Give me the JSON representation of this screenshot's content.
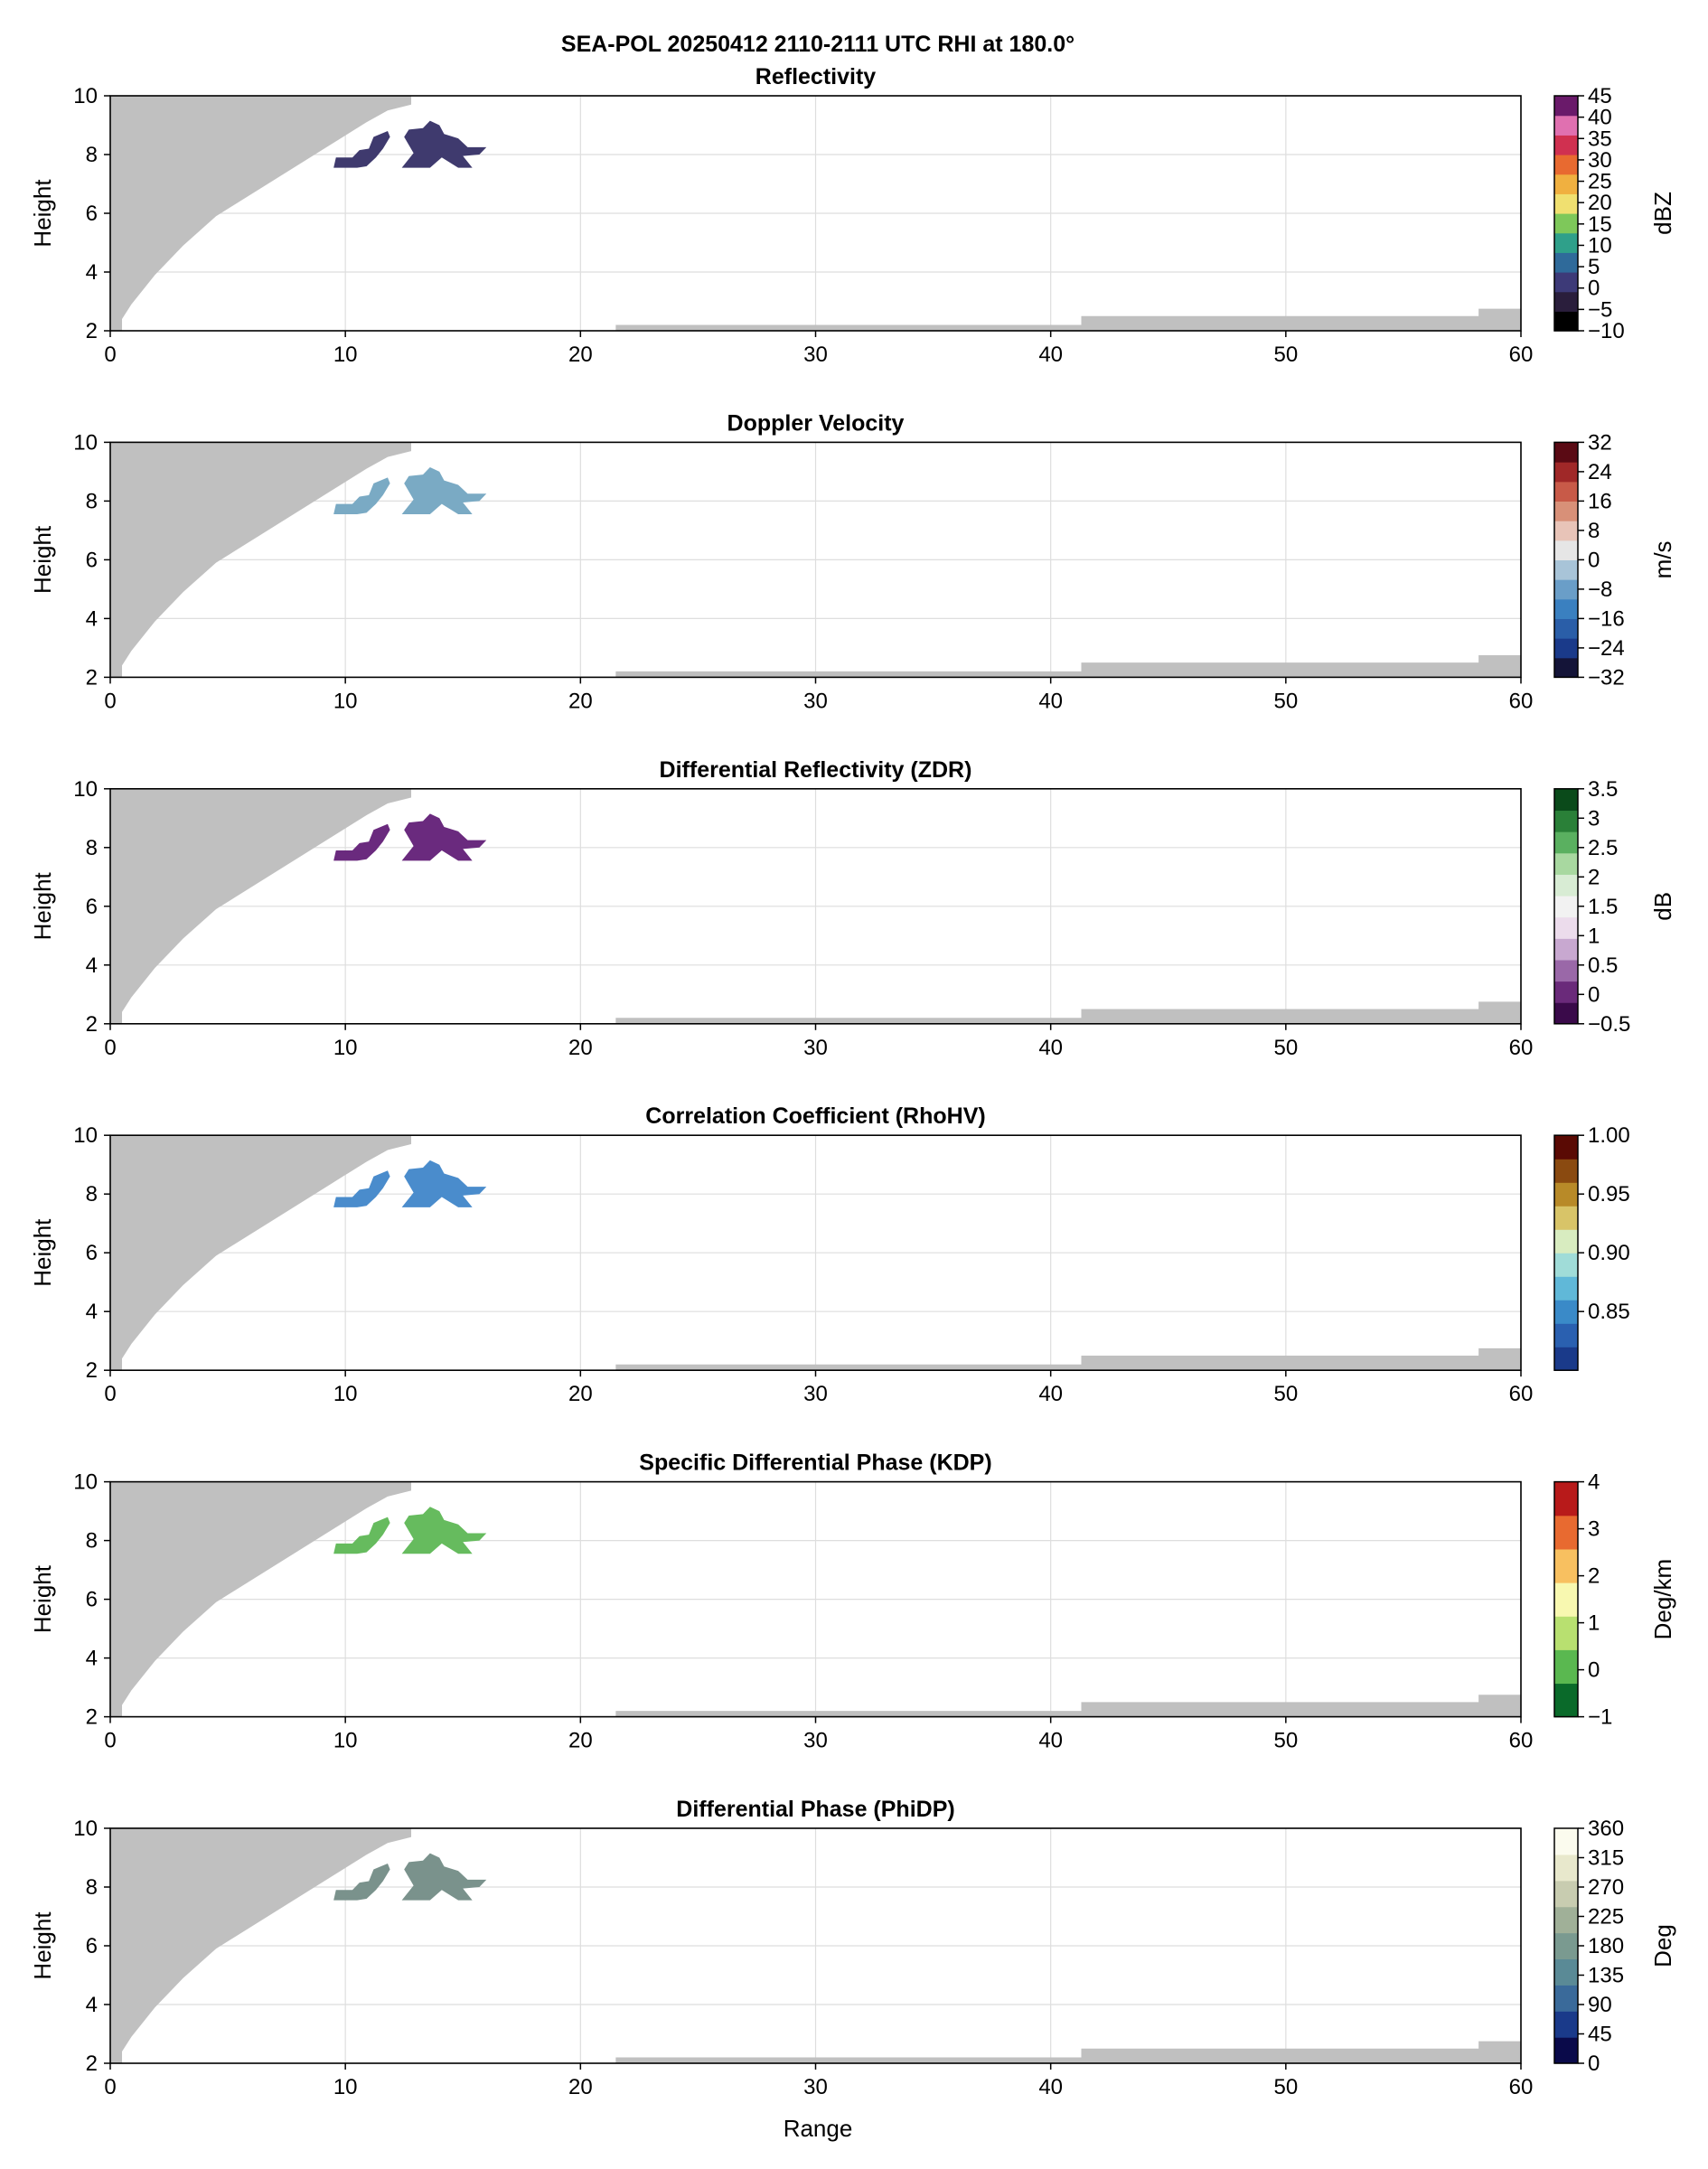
{
  "figure": {
    "suptitle": "SEA-POL 20250412 2110-2111 UTC RHI at 180.0°",
    "xlabel": "Range",
    "ylabel": "Height"
  },
  "chart_data": [
    {
      "type": "heatmap",
      "title": "Reflectivity",
      "xlabel": "",
      "ylabel": "Height",
      "xlim": [
        0,
        60
      ],
      "ylim": [
        2,
        10
      ],
      "x_ticks": [
        0,
        10,
        20,
        30,
        40,
        50,
        60
      ],
      "y_ticks": [
        2,
        4,
        6,
        8,
        10
      ],
      "colorbar": {
        "label": "dBZ",
        "ticks": [
          -10,
          -5,
          0,
          5,
          10,
          15,
          20,
          25,
          30,
          35,
          40,
          45
        ],
        "range": [
          -10,
          45
        ],
        "colors": [
          "#000000",
          "#2a1e3c",
          "#3d3a78",
          "#2f6a9a",
          "#2fa08a",
          "#7ec85a",
          "#f0e070",
          "#f0b040",
          "#e86a30",
          "#d03050",
          "#e070b0",
          "#6a1a6a"
        ]
      },
      "echo_value": 2,
      "echo_color": "#3f3a6e"
    },
    {
      "type": "heatmap",
      "title": "Doppler Velocity",
      "xlabel": "",
      "ylabel": "Height",
      "xlim": [
        0,
        60
      ],
      "ylim": [
        2,
        10
      ],
      "x_ticks": [
        0,
        10,
        20,
        30,
        40,
        50,
        60
      ],
      "y_ticks": [
        2,
        4,
        6,
        8,
        10
      ],
      "colorbar": {
        "label": "m/s",
        "ticks": [
          32,
          24,
          16,
          8,
          0,
          -8,
          -16,
          -24,
          -32
        ],
        "range": [
          -32,
          32
        ],
        "colors": [
          "#141438",
          "#1a3a8a",
          "#2a5ea8",
          "#3a80c0",
          "#6a9ec8",
          "#a8c4d8",
          "#e6e6e6",
          "#e8c4b8",
          "#d89078",
          "#c85a48",
          "#a02828",
          "#5a0a14"
        ]
      },
      "echo_value": -9,
      "echo_color": "#7aaac4"
    },
    {
      "type": "heatmap",
      "title": "Differential Reflectivity (ZDR)",
      "xlabel": "",
      "ylabel": "Height",
      "xlim": [
        0,
        60
      ],
      "ylim": [
        2,
        10
      ],
      "x_ticks": [
        0,
        10,
        20,
        30,
        40,
        50,
        60
      ],
      "y_ticks": [
        2,
        4,
        6,
        8,
        10
      ],
      "colorbar": {
        "label": "dB",
        "ticks": [
          3.5,
          3.0,
          2.5,
          2.0,
          1.5,
          1.0,
          0.5,
          0.0,
          -0.5
        ],
        "range": [
          -0.5,
          3.5
        ],
        "colors": [
          "#3a0a4a",
          "#6a2a7a",
          "#9a68a8",
          "#c8a8d0",
          "#ecdcec",
          "#f2f2f2",
          "#d8ecd4",
          "#a8d8a0",
          "#5ab060",
          "#2a8038",
          "#0a4a1a"
        ]
      },
      "echo_value": 0,
      "echo_color": "#6a2a7e"
    },
    {
      "type": "heatmap",
      "title": "Correlation Coefficient (RhoHV)",
      "xlabel": "",
      "ylabel": "Height",
      "xlim": [
        0,
        60
      ],
      "ylim": [
        2,
        10
      ],
      "x_ticks": [
        0,
        10,
        20,
        30,
        40,
        50,
        60
      ],
      "y_ticks": [
        2,
        4,
        6,
        8,
        10
      ],
      "colorbar": {
        "label": "",
        "ticks": [
          0.85,
          0.9,
          0.95,
          1.0
        ],
        "tick_labels": [
          "0.85",
          "0.90",
          "0.95",
          "1.00"
        ],
        "range": [
          0.8,
          1.0
        ],
        "colors": [
          "#1a3a8a",
          "#2a60b0",
          "#3a8ac8",
          "#60b8d8",
          "#a0dcd8",
          "#d8ecc0",
          "#d8c468",
          "#b88a28",
          "#8a4a10",
          "#5a0a04"
        ]
      },
      "echo_value": 0.86,
      "echo_color": "#4a8ccc"
    },
    {
      "type": "heatmap",
      "title": "Specific Differential Phase (KDP)",
      "xlabel": "",
      "ylabel": "Height",
      "xlim": [
        0,
        60
      ],
      "ylim": [
        2,
        10
      ],
      "x_ticks": [
        0,
        10,
        20,
        30,
        40,
        50,
        60
      ],
      "y_ticks": [
        2,
        4,
        6,
        8,
        10
      ],
      "colorbar": {
        "label": "Deg/km",
        "ticks": [
          -1,
          0,
          1,
          2,
          3,
          4
        ],
        "range": [
          -1,
          4
        ],
        "colors": [
          "#0a6a2a",
          "#5ab850",
          "#b8e070",
          "#f8f8b0",
          "#f8c060",
          "#e86a30",
          "#b81a1a"
        ]
      },
      "echo_value": 0,
      "echo_color": "#66bb5e"
    },
    {
      "type": "heatmap",
      "title": "Differential Phase (PhiDP)",
      "xlabel": "Range",
      "ylabel": "Height",
      "xlim": [
        0,
        60
      ],
      "ylim": [
        2,
        10
      ],
      "x_ticks": [
        0,
        10,
        20,
        30,
        40,
        50,
        60
      ],
      "y_ticks": [
        2,
        4,
        6,
        8,
        10
      ],
      "colorbar": {
        "label": "Deg",
        "ticks": [
          0,
          45,
          90,
          135,
          180,
          225,
          270,
          315,
          360
        ],
        "range": [
          0,
          360
        ],
        "colors": [
          "#0a0a4a",
          "#1a3a8a",
          "#3a6a9a",
          "#5a8a96",
          "#7a9a90",
          "#a0b098",
          "#c8ccb0",
          "#e8e8cc",
          "#fbfbee"
        ]
      },
      "echo_value": 190,
      "echo_color": "#7a928c"
    }
  ],
  "colors": {
    "blocked": "#c0c0c0",
    "grid": "#dedede"
  },
  "mask_regions": {
    "beam_blockage_left": [
      [
        0.0,
        2.0
      ],
      [
        0.0,
        10.0
      ],
      [
        12.8,
        10.0
      ],
      [
        12.8,
        9.7
      ],
      [
        11.8,
        9.5
      ],
      [
        10.9,
        9.1
      ],
      [
        10.1,
        8.7
      ],
      [
        9.3,
        8.3
      ],
      [
        8.5,
        7.9
      ],
      [
        7.7,
        7.5
      ],
      [
        6.9,
        7.1
      ],
      [
        6.1,
        6.7
      ],
      [
        5.3,
        6.3
      ],
      [
        4.5,
        5.9
      ],
      [
        3.8,
        5.4
      ],
      [
        3.1,
        4.9
      ],
      [
        2.5,
        4.4
      ],
      [
        1.9,
        3.9
      ],
      [
        1.4,
        3.4
      ],
      [
        0.9,
        2.9
      ],
      [
        0.5,
        2.4
      ],
      [
        0.5,
        2.0
      ]
    ],
    "ground_clutter_right": [
      [
        21.5,
        2.0
      ],
      [
        21.5,
        2.2
      ],
      [
        41.3,
        2.2
      ],
      [
        41.3,
        2.5
      ],
      [
        58.2,
        2.5
      ],
      [
        58.2,
        2.75
      ],
      [
        60.0,
        2.75
      ],
      [
        60.0,
        2.0
      ]
    ]
  },
  "echo_regions": [
    [
      [
        9.5,
        7.55
      ],
      [
        9.6,
        7.9
      ],
      [
        10.3,
        7.9
      ],
      [
        10.6,
        8.15
      ],
      [
        11.0,
        8.2
      ],
      [
        11.2,
        8.6
      ],
      [
        11.8,
        8.8
      ],
      [
        11.9,
        8.6
      ],
      [
        11.6,
        8.2
      ],
      [
        11.3,
        7.9
      ],
      [
        10.9,
        7.6
      ],
      [
        10.5,
        7.55
      ]
    ],
    [
      [
        12.4,
        7.55
      ],
      [
        12.9,
        8.05
      ],
      [
        12.5,
        8.6
      ],
      [
        12.7,
        8.85
      ],
      [
        13.3,
        8.9
      ],
      [
        13.6,
        9.15
      ],
      [
        14.0,
        9.0
      ],
      [
        14.2,
        8.7
      ],
      [
        14.8,
        8.55
      ],
      [
        15.2,
        8.25
      ],
      [
        16.0,
        8.25
      ],
      [
        15.7,
        8.0
      ],
      [
        15.0,
        7.95
      ],
      [
        15.4,
        7.55
      ],
      [
        14.8,
        7.55
      ],
      [
        14.1,
        7.9
      ],
      [
        13.6,
        7.55
      ]
    ]
  ]
}
